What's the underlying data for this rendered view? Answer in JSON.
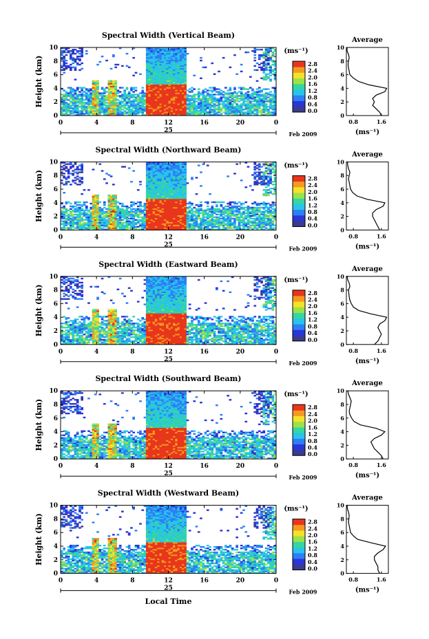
{
  "figure": {
    "colorbar_unit": "(ms⁻¹)",
    "colorbar_ticks": [
      "0.0",
      "0.4",
      "0.8",
      "1.2",
      "1.6",
      "2.0",
      "2.4",
      "2.8"
    ],
    "date_label": "Feb 2009",
    "day_label": "25",
    "xlabel": "Local Time",
    "ylabel": "Height (km)",
    "average_title": "Average",
    "average_xlabel": "(ms⁻¹)",
    "average_xticks": [
      "0.8",
      "1.6"
    ],
    "x_ticks": [
      "0",
      "4",
      "8",
      "12",
      "16",
      "20",
      "0"
    ],
    "y_ticks": [
      "0",
      "2",
      "4",
      "6",
      "8",
      "10"
    ],
    "colors": {
      "scale": [
        "#3b3b8f",
        "#2a36d6",
        "#2d7ff5",
        "#27c4ec",
        "#35d6a0",
        "#9be24a",
        "#f5e12a",
        "#f59a20",
        "#e8361c"
      ],
      "background": "#ffffff"
    }
  },
  "chart_data": [
    {
      "type": "heatmap",
      "title": "Spectral Width (Vertical Beam)",
      "xlabel": "Local Time",
      "ylabel": "Height (km)",
      "xlim": [
        0,
        24
      ],
      "ylim": [
        0,
        10
      ],
      "zlim": [
        0.0,
        2.8
      ],
      "zlabel": "(ms⁻¹)",
      "profile": {
        "title": "Average",
        "xlabel": "(ms⁻¹)",
        "xlim": [
          0.6,
          1.8
        ],
        "height": [
          0,
          0.5,
          1,
          1.5,
          2,
          2.5,
          3,
          3.5,
          4,
          4.5,
          5,
          5.5,
          6,
          6.5,
          7,
          7.5,
          8,
          8.5,
          9,
          9.5,
          10
        ],
        "width": [
          1.6,
          1.55,
          1.45,
          1.35,
          1.4,
          1.35,
          1.45,
          1.7,
          1.75,
          1.25,
          0.95,
          0.8,
          0.7,
          0.68,
          0.66,
          0.65,
          0.66,
          0.68,
          0.66,
          0.62,
          0.62
        ]
      }
    },
    {
      "type": "heatmap",
      "title": "Spectral Width (Northward Beam)",
      "xlabel": "Local Time",
      "ylabel": "Height (km)",
      "xlim": [
        0,
        24
      ],
      "ylim": [
        0,
        10
      ],
      "zlim": [
        0.0,
        2.8
      ],
      "zlabel": "(ms⁻¹)",
      "profile": {
        "title": "Average",
        "xlabel": "(ms⁻¹)",
        "xlim": [
          0.6,
          1.8
        ],
        "height": [
          0,
          0.5,
          1,
          1.5,
          2,
          2.5,
          3,
          3.5,
          4,
          4.5,
          5,
          5.5,
          6,
          6.5,
          7,
          7.5,
          8,
          8.5,
          9,
          9.5,
          10
        ],
        "width": [
          1.55,
          1.5,
          1.45,
          1.4,
          1.35,
          1.35,
          1.45,
          1.65,
          1.7,
          1.2,
          0.9,
          0.78,
          0.72,
          0.7,
          0.68,
          0.66,
          0.68,
          0.7,
          0.66,
          0.64,
          0.63
        ]
      }
    },
    {
      "type": "heatmap",
      "title": "Spectral Width (Eastward Beam)",
      "xlabel": "Local Time",
      "ylabel": "Height (km)",
      "xlim": [
        0,
        24
      ],
      "ylim": [
        0,
        10
      ],
      "zlim": [
        0.0,
        2.8
      ],
      "zlabel": "(ms⁻¹)",
      "profile": {
        "title": "Average",
        "xlabel": "(ms⁻¹)",
        "xlim": [
          0.6,
          1.8
        ],
        "height": [
          0,
          0.5,
          1,
          1.5,
          2,
          2.5,
          3,
          3.5,
          4,
          4.5,
          5,
          5.5,
          6,
          6.5,
          7,
          7.5,
          8,
          8.5,
          9,
          9.5,
          10
        ],
        "width": [
          1.4,
          1.5,
          1.55,
          1.6,
          1.55,
          1.5,
          1.55,
          1.7,
          1.75,
          1.3,
          0.95,
          0.8,
          0.74,
          0.7,
          0.68,
          0.67,
          0.66,
          0.7,
          0.68,
          0.64,
          0.62
        ]
      }
    },
    {
      "type": "heatmap",
      "title": "Spectral Width (Southward Beam)",
      "xlabel": "Local Time",
      "ylabel": "Height (km)",
      "xlim": [
        0,
        24
      ],
      "ylim": [
        0,
        10
      ],
      "zlim": [
        0.0,
        2.8
      ],
      "zlabel": "(ms⁻¹)",
      "profile": {
        "title": "Average",
        "xlabel": "(ms⁻¹)",
        "xlim": [
          0.6,
          1.8
        ],
        "height": [
          0,
          0.5,
          1,
          1.5,
          2,
          2.5,
          3,
          3.5,
          4,
          4.5,
          5,
          5.5,
          6,
          6.5,
          7,
          7.5,
          8,
          8.5,
          9,
          9.5,
          10
        ],
        "width": [
          1.65,
          1.6,
          1.5,
          1.4,
          1.35,
          1.3,
          1.4,
          1.6,
          1.7,
          1.45,
          1.0,
          0.82,
          0.75,
          0.7,
          0.68,
          0.7,
          0.72,
          0.74,
          0.7,
          0.66,
          0.64
        ]
      }
    },
    {
      "type": "heatmap",
      "title": "Spectral Width (Westward Beam)",
      "xlabel": "Local Time",
      "ylabel": "Height (km)",
      "xlim": [
        0,
        24
      ],
      "ylim": [
        0,
        10
      ],
      "zlim": [
        0.0,
        2.8
      ],
      "zlabel": "(ms⁻¹)",
      "profile": {
        "title": "Average",
        "xlabel": "(ms⁻¹)",
        "xlim": [
          0.6,
          1.8
        ],
        "height": [
          0,
          0.5,
          1,
          1.5,
          2,
          2.5,
          3,
          3.5,
          4,
          4.5,
          5,
          5.5,
          6,
          6.5,
          7,
          7.5,
          8,
          8.5,
          9,
          9.5,
          10
        ],
        "width": [
          1.55,
          1.5,
          1.5,
          1.45,
          1.4,
          1.4,
          1.5,
          1.65,
          1.72,
          1.3,
          0.92,
          0.8,
          0.72,
          0.7,
          0.68,
          0.66,
          0.67,
          0.68,
          0.66,
          0.63,
          0.62
        ]
      }
    }
  ]
}
